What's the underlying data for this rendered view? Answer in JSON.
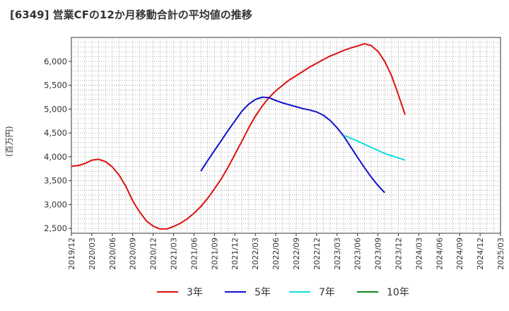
{
  "title": "[6349]  営業CFの12か月移動合計の平均値の推移",
  "chart_data": {
    "type": "line",
    "title": "[6349]  営業CFの12か月移動合計の平均値の推移",
    "ylabel": "(百万円)",
    "xlabel": "",
    "ylim": [
      2400,
      6500
    ],
    "yticks": [
      2500,
      3000,
      3500,
      4000,
      4500,
      5000,
      5500,
      6000
    ],
    "ytick_labels": [
      "2,500",
      "3,000",
      "3,500",
      "4,000",
      "4,500",
      "5,000",
      "5,500",
      "6,000"
    ],
    "xticks": [
      "2019/12",
      "2020/03",
      "2020/06",
      "2020/09",
      "2020/12",
      "2021/03",
      "2021/06",
      "2021/09",
      "2021/12",
      "2022/03",
      "2022/06",
      "2022/09",
      "2022/12",
      "2023/03",
      "2023/06",
      "2023/09",
      "2023/12",
      "2024/03",
      "2024/06",
      "2024/09",
      "2024/12",
      "2025/03"
    ],
    "grid": true,
    "legend_position": "bottom",
    "series": [
      {
        "name": "3年",
        "color": "#dd1111",
        "points": [
          [
            "2019/12",
            3800
          ],
          [
            "2020/01",
            3820
          ],
          [
            "2020/02",
            3860
          ],
          [
            "2020/03",
            3930
          ],
          [
            "2020/04",
            3950
          ],
          [
            "2020/05",
            3900
          ],
          [
            "2020/06",
            3790
          ],
          [
            "2020/07",
            3620
          ],
          [
            "2020/08",
            3380
          ],
          [
            "2020/09",
            3080
          ],
          [
            "2020/10",
            2850
          ],
          [
            "2020/11",
            2660
          ],
          [
            "2020/12",
            2550
          ],
          [
            "2021/01",
            2490
          ],
          [
            "2021/02",
            2490
          ],
          [
            "2021/03",
            2540
          ],
          [
            "2021/04",
            2610
          ],
          [
            "2021/05",
            2700
          ],
          [
            "2021/06",
            2820
          ],
          [
            "2021/07",
            2960
          ],
          [
            "2021/08",
            3130
          ],
          [
            "2021/09",
            3330
          ],
          [
            "2021/10",
            3540
          ],
          [
            "2021/11",
            3780
          ],
          [
            "2021/12",
            4050
          ],
          [
            "2022/01",
            4320
          ],
          [
            "2022/02",
            4600
          ],
          [
            "2022/03",
            4850
          ],
          [
            "2022/04",
            5060
          ],
          [
            "2022/05",
            5240
          ],
          [
            "2022/06",
            5380
          ],
          [
            "2022/07",
            5500
          ],
          [
            "2022/08",
            5610
          ],
          [
            "2022/09",
            5700
          ],
          [
            "2022/10",
            5790
          ],
          [
            "2022/11",
            5880
          ],
          [
            "2022/12",
            5960
          ],
          [
            "2023/01",
            6040
          ],
          [
            "2023/02",
            6110
          ],
          [
            "2023/03",
            6170
          ],
          [
            "2023/04",
            6230
          ],
          [
            "2023/05",
            6280
          ],
          [
            "2023/06",
            6320
          ],
          [
            "2023/07",
            6370
          ],
          [
            "2023/08",
            6330
          ],
          [
            "2023/09",
            6210
          ],
          [
            "2023/10",
            6000
          ],
          [
            "2023/11",
            5700
          ],
          [
            "2023/12",
            5300
          ],
          [
            "2024/01",
            4880
          ]
        ]
      },
      {
        "name": "5年",
        "color": "#1111cc",
        "points": [
          [
            "2021/07",
            3700
          ],
          [
            "2021/08",
            3920
          ],
          [
            "2021/09",
            4130
          ],
          [
            "2021/10",
            4340
          ],
          [
            "2021/11",
            4550
          ],
          [
            "2021/12",
            4750
          ],
          [
            "2022/01",
            4950
          ],
          [
            "2022/02",
            5100
          ],
          [
            "2022/03",
            5200
          ],
          [
            "2022/04",
            5250
          ],
          [
            "2022/05",
            5240
          ],
          [
            "2022/06",
            5180
          ],
          [
            "2022/07",
            5130
          ],
          [
            "2022/08",
            5090
          ],
          [
            "2022/09",
            5050
          ],
          [
            "2022/10",
            5010
          ],
          [
            "2022/11",
            4980
          ],
          [
            "2022/12",
            4940
          ],
          [
            "2023/01",
            4870
          ],
          [
            "2023/02",
            4760
          ],
          [
            "2023/03",
            4610
          ],
          [
            "2023/04",
            4430
          ],
          [
            "2023/05",
            4210
          ],
          [
            "2023/06",
            3990
          ],
          [
            "2023/07",
            3780
          ],
          [
            "2023/08",
            3580
          ],
          [
            "2023/09",
            3400
          ],
          [
            "2023/10",
            3250
          ]
        ]
      },
      {
        "name": "7年",
        "color": "#11dddd",
        "points": [
          [
            "2023/04",
            4450
          ],
          [
            "2023/06",
            4330
          ],
          [
            "2023/08",
            4200
          ],
          [
            "2023/10",
            4070
          ],
          [
            "2024/01",
            3930
          ]
        ]
      },
      {
        "name": "10年",
        "color": "#118811",
        "points": []
      }
    ]
  }
}
